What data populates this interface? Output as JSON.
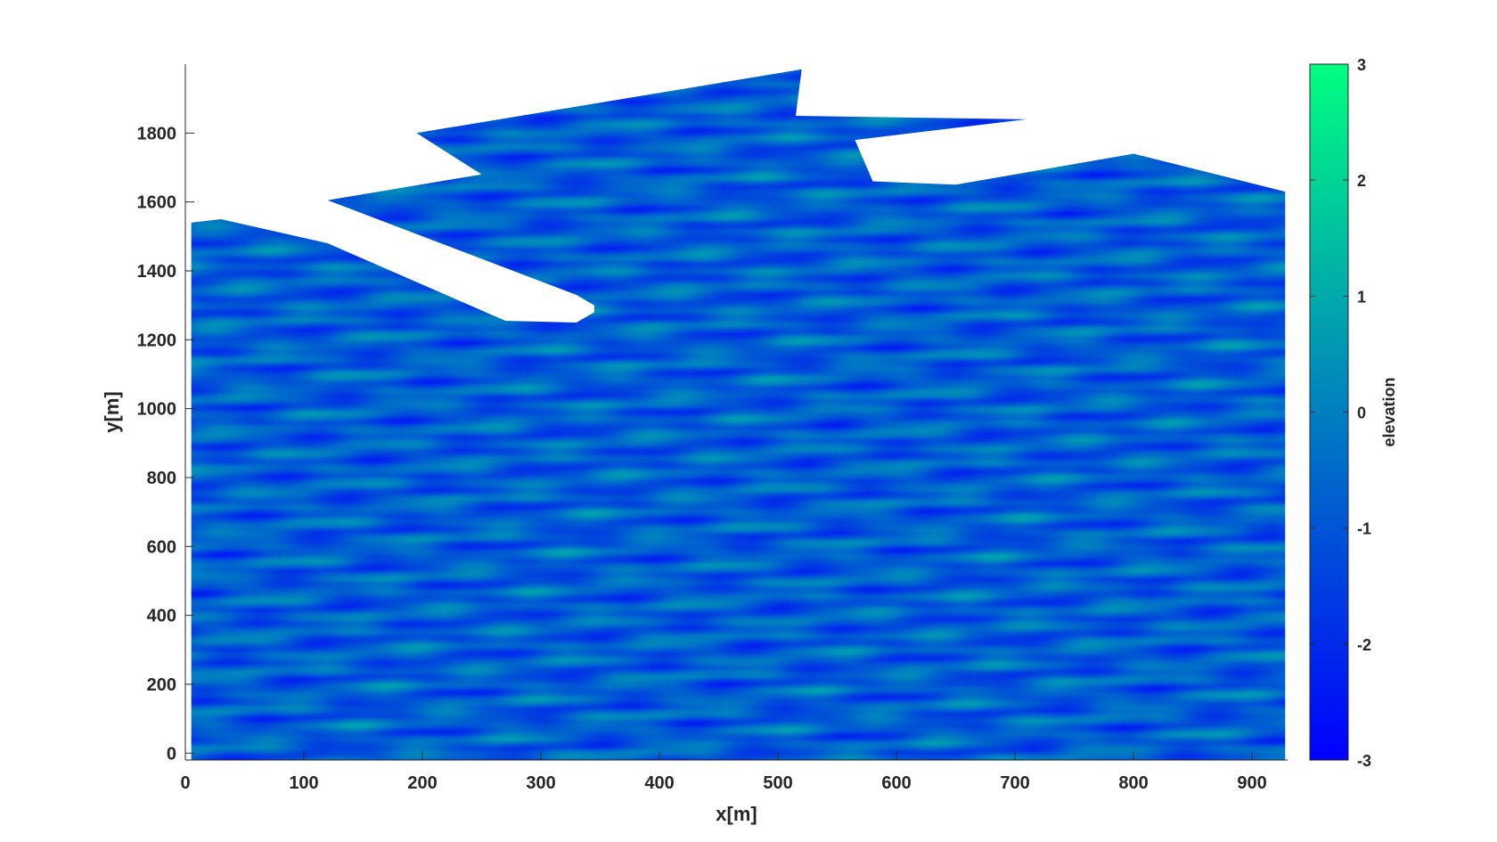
{
  "chart_data": {
    "type": "heatmap",
    "title": "",
    "xlabel": "x[m]",
    "ylabel": "y[m]",
    "xlim": [
      0,
      930
    ],
    "ylim": [
      -20,
      2000
    ],
    "x_ticks": [
      0,
      100,
      200,
      300,
      400,
      500,
      600,
      700,
      800,
      900
    ],
    "y_ticks": [
      0,
      200,
      400,
      600,
      800,
      1000,
      1200,
      1400,
      1600,
      1800
    ],
    "data_extent": {
      "x": [
        5,
        928
      ],
      "y": [
        -20,
        1540
      ]
    },
    "colorbar": {
      "label": "elevation",
      "range": [
        -3,
        3
      ],
      "ticks": [
        3,
        2,
        1,
        0,
        -1,
        -2,
        -3
      ],
      "colormap": [
        "#0000ff",
        "#00ff80"
      ]
    },
    "description_note": "",
    "domain_boundary_top": [
      [
        5,
        1540
      ],
      [
        30,
        1550
      ],
      [
        120,
        1480
      ],
      [
        270,
        1255
      ],
      [
        330,
        1250
      ],
      [
        345,
        1280
      ],
      [
        345,
        1300
      ],
      [
        330,
        1330
      ],
      [
        120,
        1605
      ],
      [
        250,
        1680
      ],
      [
        195,
        1800
      ],
      [
        520,
        1985
      ],
      [
        515,
        1850
      ],
      [
        710,
        1840
      ],
      [
        565,
        1780
      ],
      [
        580,
        1660
      ],
      [
        650,
        1650
      ],
      [
        800,
        1740
      ],
      [
        928,
        1630
      ]
    ],
    "colors": {
      "axis": "#262626",
      "background": "#ffffff"
    }
  }
}
